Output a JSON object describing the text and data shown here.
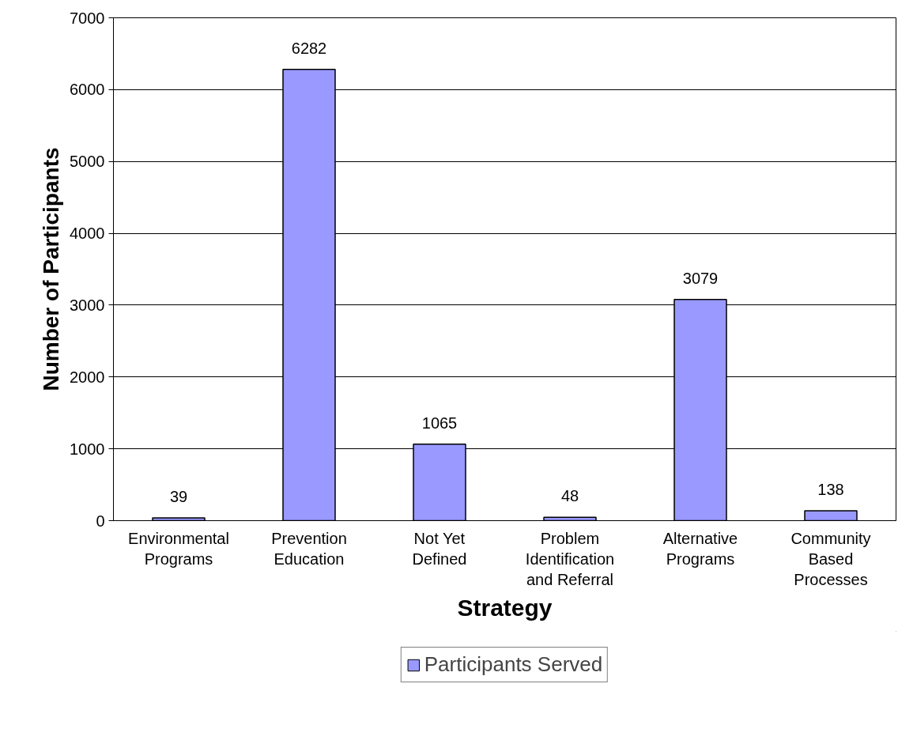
{
  "chart_data": {
    "type": "bar",
    "xlabel": "Strategy",
    "ylabel": "Number of Participants",
    "categories": [
      "Environmental Programs",
      "Prevention Education",
      "Not Yet Defined",
      "Problem Identification and Referral",
      "Alternative Programs",
      "Community Based Processes"
    ],
    "series": [
      {
        "name": "Participants Served",
        "color": "#9999ff",
        "values": [
          39,
          6282,
          1065,
          48,
          3079,
          138
        ]
      }
    ],
    "ylim": [
      0,
      7000
    ],
    "yticks": [
      0,
      1000,
      2000,
      3000,
      4000,
      5000,
      6000,
      7000
    ],
    "grid": "y",
    "legend": "bottom",
    "data_labels": true
  }
}
